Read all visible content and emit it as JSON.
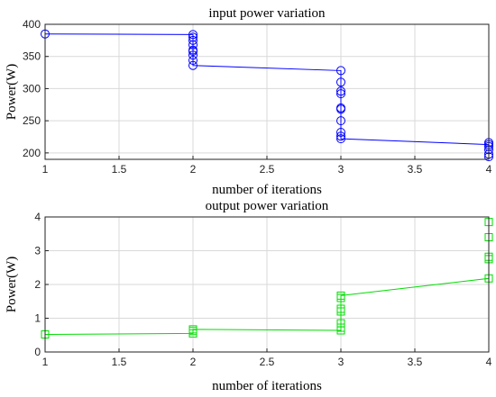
{
  "chart_data": [
    {
      "type": "line",
      "title": "input power variation",
      "xlabel": "number of iterations",
      "ylabel": "Power(W)",
      "xlim": [
        1,
        4
      ],
      "ylim": [
        190,
        400
      ],
      "xticks": [
        1,
        1.5,
        2,
        2.5,
        3,
        3.5,
        4
      ],
      "yticks": [
        200,
        250,
        300,
        350,
        400
      ],
      "xtick_labels": [
        "1",
        "1.5",
        "2",
        "2.5",
        "3",
        "3.5",
        "4"
      ],
      "ytick_labels": [
        "200",
        "250",
        "300",
        "350",
        "400"
      ],
      "grid": true,
      "marker": "circle",
      "color": "#0000ff",
      "series": [
        {
          "x": [
            1,
            2,
            2,
            2,
            2,
            2,
            2,
            2,
            2,
            2,
            3,
            3,
            3,
            3,
            3,
            3,
            3,
            3,
            3,
            3,
            4,
            4,
            4,
            4,
            4,
            4
          ],
          "y": [
            385,
            384,
            380,
            375,
            368,
            360,
            358,
            352,
            344,
            336,
            328,
            310,
            296,
            292,
            270,
            268,
            250,
            232,
            226,
            222,
            213,
            216,
            210,
            205,
            198,
            194
          ]
        }
      ]
    },
    {
      "type": "line",
      "title": "output power variation",
      "xlabel": "number of iterations",
      "ylabel": "Power(W)",
      "xlim": [
        1,
        4
      ],
      "ylim": [
        0,
        4
      ],
      "xticks": [
        1,
        1.5,
        2,
        2.5,
        3,
        3.5,
        4
      ],
      "yticks": [
        0,
        1,
        2,
        3,
        4
      ],
      "xtick_labels": [
        "1",
        "1.5",
        "2",
        "2.5",
        "3",
        "3.5",
        "4"
      ],
      "ytick_labels": [
        "0",
        "1",
        "2",
        "3",
        "4"
      ],
      "grid": true,
      "marker": "square",
      "color": "#00dd00",
      "series": [
        {
          "x": [
            1,
            2,
            2,
            2,
            3,
            3,
            3,
            3,
            3,
            3,
            3,
            4,
            4,
            4,
            4,
            4
          ],
          "y": [
            0.52,
            0.55,
            0.62,
            0.67,
            0.64,
            0.72,
            0.85,
            1.2,
            1.28,
            1.6,
            1.67,
            2.18,
            2.75,
            2.82,
            3.4,
            3.85
          ]
        }
      ]
    }
  ]
}
